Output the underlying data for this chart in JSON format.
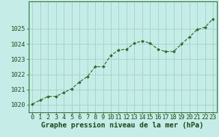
{
  "x": [
    0,
    1,
    2,
    3,
    4,
    5,
    6,
    7,
    8,
    9,
    10,
    11,
    12,
    13,
    14,
    15,
    16,
    17,
    18,
    19,
    20,
    21,
    22,
    23
  ],
  "y": [
    1020.05,
    1020.3,
    1020.55,
    1020.55,
    1020.8,
    1021.05,
    1021.5,
    1021.85,
    1022.5,
    1022.5,
    1023.25,
    1023.6,
    1023.65,
    1024.05,
    1024.2,
    1024.05,
    1023.65,
    1023.5,
    1023.5,
    1024.0,
    1024.45,
    1024.95,
    1025.1,
    1025.65
  ],
  "line_color": "#2d6e2d",
  "marker_color": "#2d6e2d",
  "background_color": "#c5ece6",
  "grid_color": "#9ececa",
  "xlabel": "Graphe pression niveau de la mer (hPa)",
  "xlabel_fontsize": 7.5,
  "tick_fontsize": 6.5,
  "ylim": [
    1019.5,
    1026.8
  ],
  "yticks": [
    1020,
    1021,
    1022,
    1023,
    1024,
    1025
  ],
  "xticks": [
    0,
    1,
    2,
    3,
    4,
    5,
    6,
    7,
    8,
    9,
    10,
    11,
    12,
    13,
    14,
    15,
    16,
    17,
    18,
    19,
    20,
    21,
    22,
    23
  ]
}
